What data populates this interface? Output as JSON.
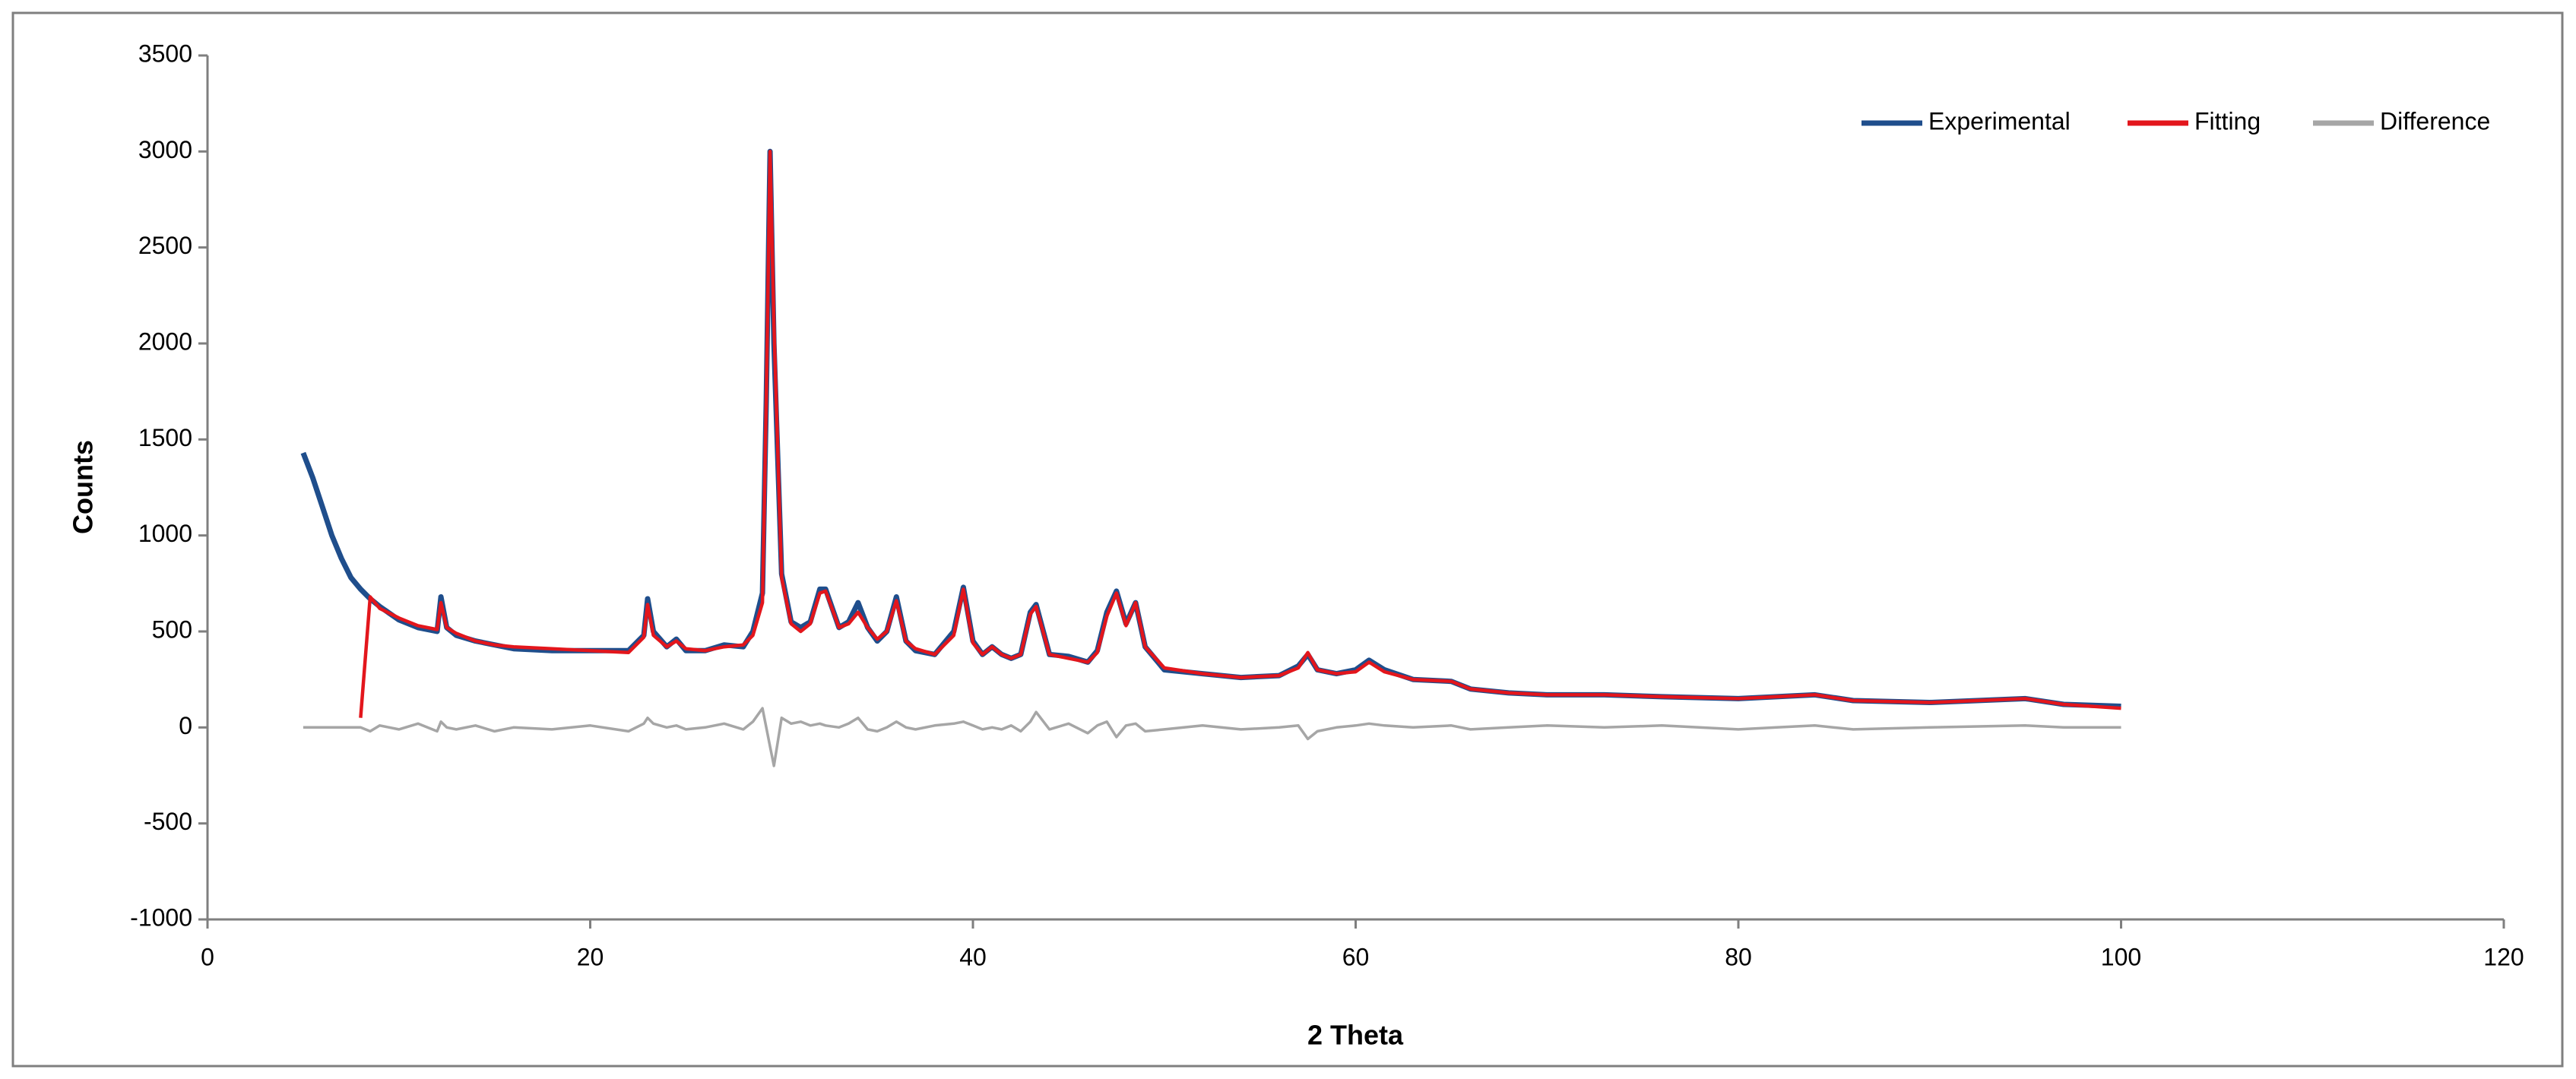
{
  "chart_data": {
    "type": "line",
    "xlabel": "2 Theta",
    "ylabel": "Counts",
    "xlim": [
      0,
      120
    ],
    "xticks": [
      0,
      20,
      40,
      60,
      80,
      100,
      120
    ],
    "ylim": [
      -1000,
      3500
    ],
    "yticks": [
      -1000,
      -500,
      0,
      500,
      1000,
      1500,
      2000,
      2500,
      3000,
      3500
    ],
    "grid": false,
    "legend": "top-right",
    "x": [
      5,
      5.5,
      6,
      6.5,
      7,
      7.5,
      8,
      8.5,
      9,
      10,
      11,
      12,
      12.2,
      12.5,
      13,
      14,
      15,
      16,
      18,
      20,
      22,
      22.8,
      23,
      23.3,
      24,
      24.5,
      25,
      26,
      27,
      28,
      28.5,
      29,
      29.2,
      29.4,
      29.6,
      30,
      30.5,
      31,
      31.5,
      32,
      32.3,
      33,
      33.5,
      34,
      34.5,
      35,
      35.5,
      36,
      36.5,
      37,
      38,
      39,
      39.5,
      40,
      40.5,
      41,
      41.5,
      42,
      42.5,
      43,
      43.3,
      44,
      45,
      46,
      46.5,
      47,
      47.5,
      48,
      48.5,
      49,
      50,
      52,
      54,
      56,
      57,
      57.5,
      58,
      59,
      60,
      60.7,
      61.5,
      63,
      65,
      66,
      68,
      70,
      73,
      76,
      80,
      82,
      84,
      86,
      90,
      95,
      97,
      100
    ],
    "series": [
      {
        "name": "Experimental",
        "color": "#1f4e8c",
        "values": [
          1430,
          1300,
          1150,
          1000,
          880,
          780,
          720,
          670,
          630,
          560,
          520,
          500,
          680,
          520,
          480,
          450,
          430,
          410,
          400,
          400,
          400,
          480,
          670,
          500,
          420,
          460,
          400,
          400,
          430,
          420,
          500,
          700,
          1700,
          3000,
          2000,
          800,
          550,
          520,
          550,
          720,
          720,
          520,
          550,
          650,
          520,
          450,
          500,
          680,
          450,
          400,
          380,
          500,
          730,
          450,
          380,
          420,
          380,
          360,
          380,
          600,
          640,
          380,
          370,
          340,
          400,
          600,
          710,
          540,
          650,
          420,
          300,
          280,
          260,
          270,
          320,
          380,
          300,
          280,
          300,
          350,
          300,
          250,
          240,
          200,
          180,
          170,
          170,
          160,
          150,
          160,
          170,
          140,
          130,
          150,
          120,
          110
        ]
      },
      {
        "name": "Fitting",
        "color": "#e3161c",
        "values": [
          null,
          null,
          null,
          null,
          null,
          null,
          50,
          680,
          620,
          570,
          530,
          510,
          650,
          520,
          490,
          450,
          430,
          420,
          410,
          400,
          390,
          470,
          640,
          480,
          420,
          450,
          410,
          400,
          420,
          430,
          480,
          650,
          1700,
          3000,
          2100,
          780,
          540,
          500,
          540,
          700,
          710,
          520,
          540,
          600,
          520,
          460,
          500,
          660,
          450,
          410,
          380,
          480,
          720,
          440,
          380,
          420,
          380,
          360,
          380,
          590,
          630,
          380,
          360,
          340,
          390,
          580,
          700,
          530,
          650,
          420,
          310,
          280,
          260,
          270,
          310,
          390,
          300,
          280,
          290,
          340,
          290,
          250,
          240,
          200,
          180,
          170,
          170,
          160,
          150,
          160,
          170,
          140,
          130,
          150,
          120,
          100
        ]
      },
      {
        "name": "Difference",
        "color": "#a6a6a6",
        "values": [
          0,
          0,
          0,
          0,
          0,
          0,
          0,
          -20,
          10,
          -10,
          20,
          -20,
          30,
          0,
          -10,
          10,
          -20,
          0,
          -10,
          10,
          -20,
          20,
          50,
          20,
          0,
          10,
          -10,
          0,
          20,
          -10,
          30,
          100,
          0,
          -100,
          -200,
          50,
          20,
          30,
          10,
          20,
          10,
          0,
          20,
          50,
          -10,
          -20,
          0,
          30,
          0,
          -10,
          10,
          20,
          30,
          10,
          -10,
          0,
          -10,
          10,
          -20,
          30,
          80,
          -10,
          20,
          -30,
          10,
          30,
          -50,
          10,
          20,
          -20,
          -10,
          10,
          -10,
          0,
          10,
          -60,
          -20,
          0,
          10,
          20,
          10,
          0,
          10,
          -10,
          0,
          10,
          0,
          10,
          -10,
          0,
          10,
          -10,
          0,
          10,
          0,
          0
        ]
      }
    ]
  }
}
